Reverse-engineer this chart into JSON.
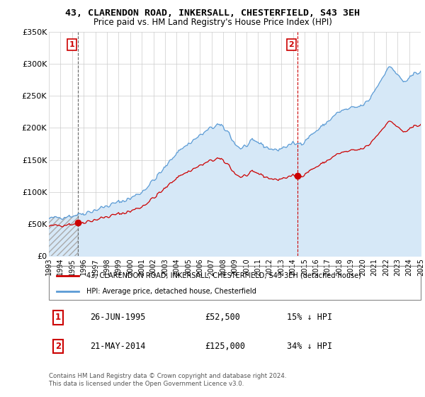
{
  "title": "43, CLARENDON ROAD, INKERSALL, CHESTERFIELD, S43 3EH",
  "subtitle": "Price paid vs. HM Land Registry's House Price Index (HPI)",
  "hpi_legend": "HPI: Average price, detached house, Chesterfield",
  "price_legend": "43, CLARENDON ROAD, INKERSALL, CHESTERFIELD, S43 3EH (detached house)",
  "sale1_date": "26-JUN-1995",
  "sale1_price": "£52,500",
  "sale1_hpi": "15% ↓ HPI",
  "sale2_date": "21-MAY-2014",
  "sale2_price": "£125,000",
  "sale2_hpi": "34% ↓ HPI",
  "footer": "Contains HM Land Registry data © Crown copyright and database right 2024.\nThis data is licensed under the Open Government Licence v3.0.",
  "hpi_color": "#5b9bd5",
  "hpi_fill_color": "#d6e8f7",
  "price_color": "#cc0000",
  "vline1_color": "#666666",
  "vline2_color": "#cc0000",
  "marker_color": "#cc0000",
  "sale1_year": 1995.5,
  "sale1_value": 52500,
  "sale2_year": 2014.37,
  "sale2_value": 125000,
  "ylim": [
    0,
    350000
  ],
  "yticks": [
    0,
    50000,
    100000,
    150000,
    200000,
    250000,
    300000,
    350000
  ],
  "ytick_labels": [
    "£0",
    "£50K",
    "£100K",
    "£150K",
    "£200K",
    "£250K",
    "£300K",
    "£350K"
  ]
}
